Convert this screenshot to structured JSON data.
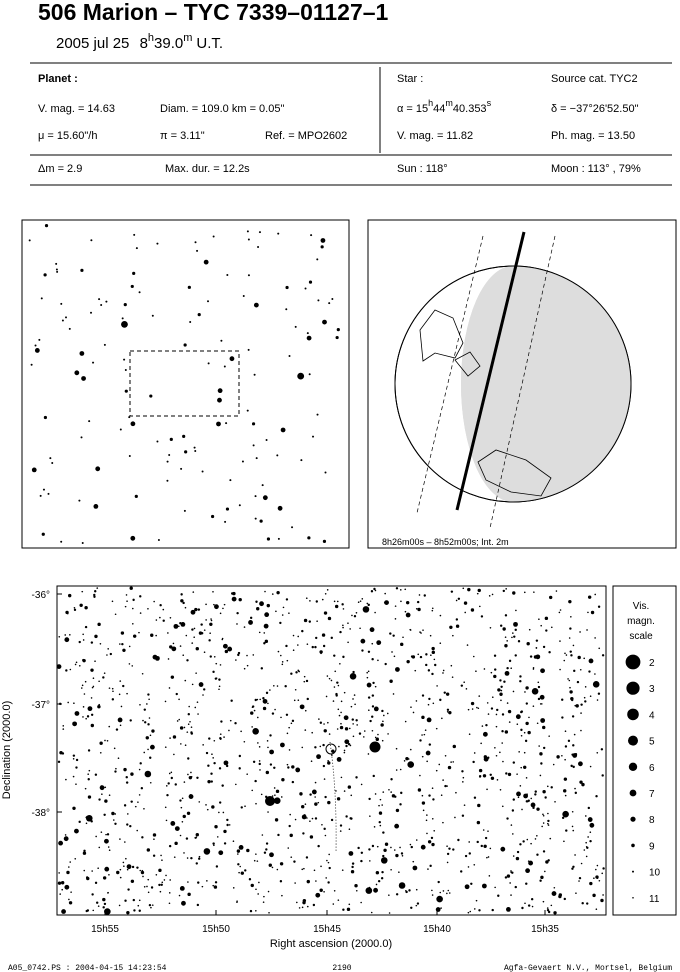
{
  "header": {
    "title": "506 Marion  –  TYC 7339–01127–1",
    "date": "2005 jul 25",
    "hours": "8",
    "h": "h",
    "minutes": "39.0",
    "m": "m",
    "tz": "U.T."
  },
  "planet": {
    "heading": "Planet :",
    "vmag": "V. mag. = 14.63",
    "diam": "Diam. = 109.0 km = 0.05\"",
    "mu": "μ =  15.60\"/h",
    "pi": "π =  3.11\"",
    "ref": "Ref. = MPO2602",
    "dm": "Δm = 2.9",
    "maxdur": "Max. dur. = 12.2s"
  },
  "star": {
    "heading": "Star :",
    "source": "Source cat.  TYC2",
    "alpha": [
      "α = 15",
      "h",
      "44",
      "m",
      "40.353",
      "s"
    ],
    "delta": "δ = −37°26'52.50\"",
    "vmag": "V. mag. = 11.82",
    "phmag": "Ph. mag. = 13.50",
    "sun": "Sun : 118°",
    "moon": "Moon : 113° , 79%"
  },
  "globe": {
    "caption": "8h26m00s –  8h52m00s; Int. 2m"
  },
  "main": {
    "ra_ticks": [
      "15h55",
      "15h50",
      "15h45",
      "15h40",
      "15h35"
    ],
    "dec_ticks": [
      "-36°",
      "-37°",
      "-38°"
    ],
    "xlabel": "Right ascension (2000.0)",
    "ylabel": "Declination (2000.0)"
  },
  "legend": {
    "title": [
      "Vis.",
      "magn.",
      "scale"
    ],
    "mags": [
      2,
      3,
      4,
      5,
      6,
      7,
      8,
      9,
      10,
      11
    ]
  },
  "footer": {
    "file": "A05_0742.PS : 2004-04-15 14:23:54",
    "number": "2190",
    "credit": "Agfa-Gevaert N.V., Mortsel, Belgium"
  }
}
